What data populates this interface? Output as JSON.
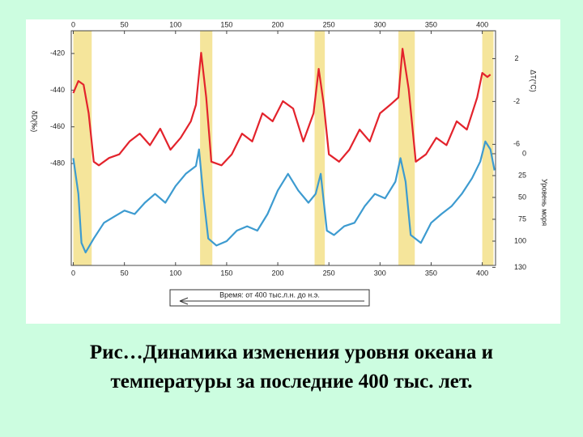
{
  "chart_data": {
    "type": "line",
    "title": "Рис…Динамика изменения уровня океана и температуры за последние 400 тыс. лет.",
    "xlabel": "Время: от 400 тыс.л.н. до н.э.",
    "ylabel": "δD(‰)",
    "y2label": "Уровень моря",
    "y3label": "ΔT(°C)",
    "xlim": [
      -2,
      413
    ],
    "xticks": [
      0,
      50,
      100,
      150,
      200,
      250,
      300,
      350,
      400
    ],
    "ylim": [
      -535.6,
      -407.6
    ],
    "yticks": [
      -420,
      -440,
      -460,
      -480
    ],
    "y2lim": [
      127.8,
      -140.7
    ],
    "y2ticks": [
      0,
      25,
      50,
      75,
      100,
      130
    ],
    "y3lim": [
      -17.3,
      4.6
    ],
    "y3ticks": [
      2,
      -2,
      -6
    ],
    "highlights": [
      [
        0,
        18
      ],
      [
        124,
        136
      ],
      [
        236,
        246
      ],
      [
        318,
        334
      ],
      [
        400,
        411
      ]
    ],
    "highlight_color": "#f3e08a",
    "series": [
      {
        "name": "δD",
        "color": "#e3232c",
        "x": [
          0,
          5,
          10,
          15,
          20,
          25,
          35,
          45,
          55,
          65,
          75,
          85,
          95,
          105,
          115,
          120,
          125,
          130,
          135,
          145,
          155,
          165,
          175,
          185,
          195,
          205,
          215,
          225,
          235,
          240,
          245,
          250,
          260,
          270,
          280,
          290,
          300,
          310,
          318,
          322,
          328,
          335,
          345,
          355,
          365,
          375,
          385,
          395,
          400,
          405,
          408
        ],
        "values": [
          -441.6,
          -435,
          -437,
          -452.6,
          -479,
          -481,
          -477,
          -475,
          -468,
          -463.7,
          -470,
          -461,
          -472.5,
          -466,
          -457,
          -448,
          -419.6,
          -444,
          -479,
          -481,
          -475,
          -463.7,
          -468,
          -452.6,
          -457,
          -446,
          -450,
          -468,
          -452.6,
          -428.4,
          -448,
          -475,
          -479,
          -472.5,
          -461.5,
          -468,
          -452.6,
          -448,
          -444,
          -417.4,
          -439.4,
          -479,
          -475,
          -466,
          -470,
          -457,
          -461.5,
          -444,
          -430.6,
          -432.8,
          -431.5
        ]
      },
      {
        "name": "Уровень моря",
        "color": "#3d9bd0",
        "axis": "y2",
        "x": [
          0,
          5,
          8,
          12,
          20,
          30,
          40,
          50,
          60,
          70,
          80,
          90,
          100,
          110,
          120,
          123,
          127,
          132,
          140,
          150,
          160,
          170,
          180,
          190,
          200,
          210,
          220,
          230,
          237,
          242,
          248,
          255,
          265,
          275,
          285,
          295,
          305,
          315,
          320,
          325,
          330,
          340,
          350,
          360,
          370,
          380,
          390,
          398,
          403,
          408,
          412
        ],
        "values": [
          5,
          46,
          102,
          113,
          97,
          79,
          72,
          65,
          69,
          56,
          46,
          56,
          37,
          23,
          14,
          -5,
          46,
          97,
          105,
          100,
          88,
          83,
          88,
          69,
          42,
          23,
          42,
          56,
          46,
          23,
          88,
          93,
          83,
          79,
          60,
          46,
          51,
          32,
          5,
          32,
          93,
          102,
          79,
          69,
          60,
          46,
          28,
          9,
          -14,
          -5,
          19
        ]
      }
    ]
  }
}
